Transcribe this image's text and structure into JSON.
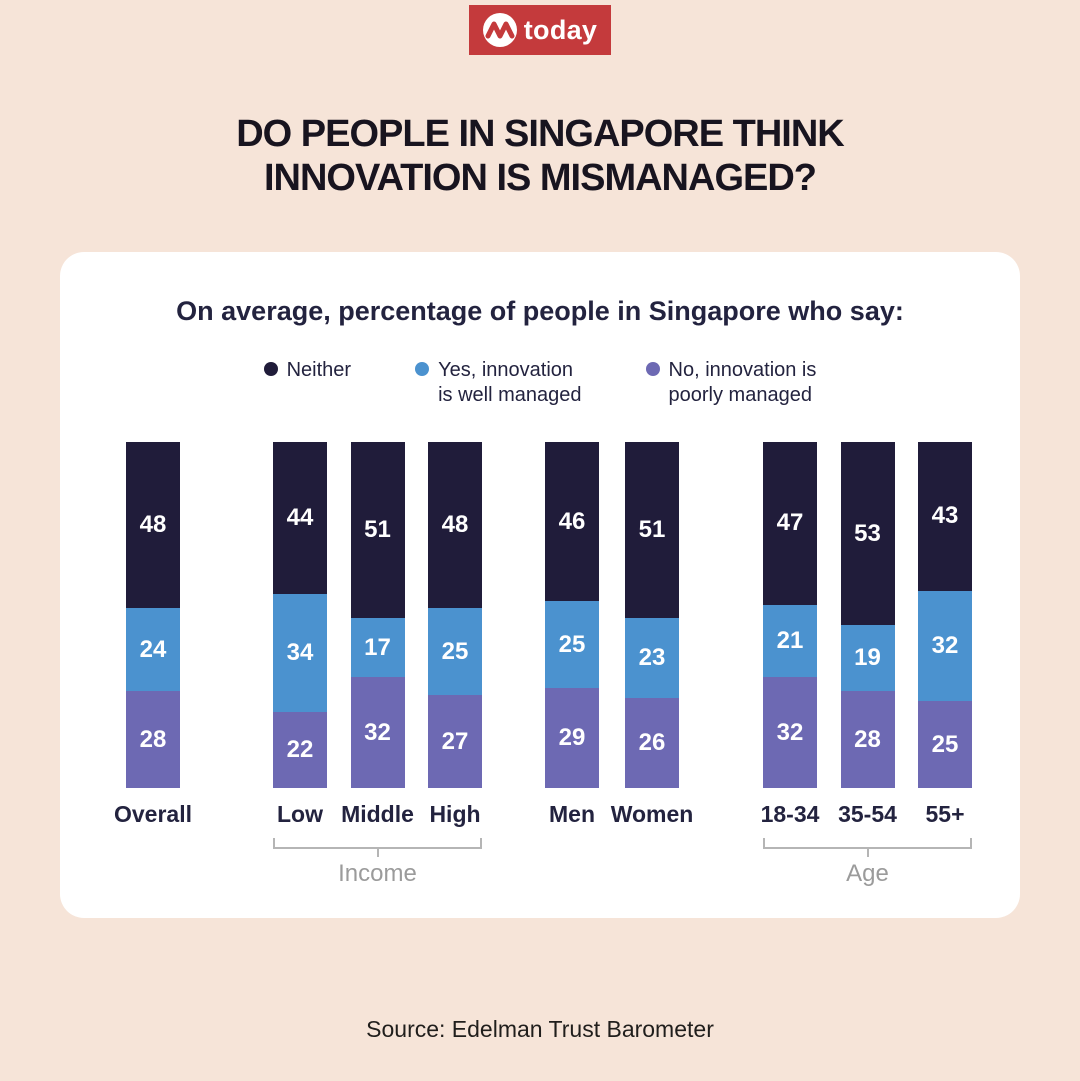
{
  "logo": {
    "brand": "today"
  },
  "title": "DO PEOPLE IN SINGAPORE THINK\nINNOVATION IS MISMANAGED?",
  "source": "Source: Edelman Trust Barometer",
  "colors": {
    "background": "#f6e4d8",
    "card": "#ffffff",
    "logo_red": "#c43a3c",
    "title_text": "#18141f",
    "dark_navy_text": "#23233f",
    "group_label_gray": "#9b9b9b",
    "series_neither": "#201c3a",
    "series_yes": "#4b92cf",
    "series_no": "#6d69b3"
  },
  "chart_data": {
    "type": "bar",
    "variant": "stacked-vertical",
    "unit": "percent",
    "title": "On average, percentage of people in Singapore who say:",
    "value_range": [
      0,
      100
    ],
    "grid": false,
    "legend_position": "top",
    "stack_order_top_to_bottom": [
      "neither",
      "yes_well_managed",
      "no_poorly_managed"
    ],
    "series_colors": {
      "neither": "#201c3a",
      "yes_well_managed": "#4b92cf",
      "no_poorly_managed": "#6d69b3"
    },
    "legend": [
      {
        "key": "neither",
        "label": "Neither",
        "color": "#201c3a"
      },
      {
        "key": "yes_well_managed",
        "label": "Yes, innovation\nis well managed",
        "color": "#4b92cf"
      },
      {
        "key": "no_poorly_managed",
        "label": "No, innovation is\npoorly managed",
        "color": "#6d69b3"
      }
    ],
    "groups": [
      {
        "id": "overall",
        "label": null,
        "bars": [
          {
            "label": "Overall",
            "values": {
              "neither": 48,
              "yes_well_managed": 24,
              "no_poorly_managed": 28
            }
          }
        ]
      },
      {
        "id": "income",
        "label": "Income",
        "bars": [
          {
            "label": "Low",
            "values": {
              "neither": 44,
              "yes_well_managed": 34,
              "no_poorly_managed": 22
            }
          },
          {
            "label": "Middle",
            "values": {
              "neither": 51,
              "yes_well_managed": 17,
              "no_poorly_managed": 32
            }
          },
          {
            "label": "High",
            "values": {
              "neither": 48,
              "yes_well_managed": 25,
              "no_poorly_managed": 27
            }
          }
        ]
      },
      {
        "id": "gender",
        "label": null,
        "bars": [
          {
            "label": "Men",
            "values": {
              "neither": 46,
              "yes_well_managed": 25,
              "no_poorly_managed": 29
            }
          },
          {
            "label": "Women",
            "values": {
              "neither": 51,
              "yes_well_managed": 23,
              "no_poorly_managed": 26
            }
          }
        ]
      },
      {
        "id": "age",
        "label": "Age",
        "bars": [
          {
            "label": "18-34",
            "values": {
              "neither": 47,
              "yes_well_managed": 21,
              "no_poorly_managed": 32
            }
          },
          {
            "label": "35-54",
            "values": {
              "neither": 53,
              "yes_well_managed": 19,
              "no_poorly_managed": 28
            }
          },
          {
            "label": "55+",
            "values": {
              "neither": 43,
              "yes_well_managed": 32,
              "no_poorly_managed": 25
            }
          }
        ]
      }
    ]
  }
}
